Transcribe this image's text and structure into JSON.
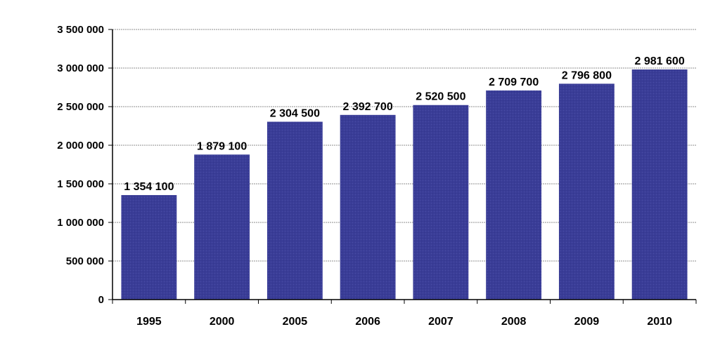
{
  "chart_data": {
    "type": "bar",
    "title": "",
    "xlabel": "",
    "ylabel": "",
    "categories": [
      "1995",
      "2000",
      "2005",
      "2006",
      "2007",
      "2008",
      "2009",
      "2010"
    ],
    "values": [
      1354100,
      1879100,
      2304500,
      2392700,
      2520500,
      2709700,
      2796800,
      2981600
    ],
    "value_labels": [
      "1 354 100",
      "1 879 100",
      "2 304 500",
      "2 392 700",
      "2 520 500",
      "2 709 700",
      "2 796 800",
      "2 981 600"
    ],
    "ylim": [
      0,
      3500000
    ],
    "y_ticks": [
      0,
      500000,
      1000000,
      1500000,
      2000000,
      2500000,
      3000000,
      3500000
    ],
    "y_tick_labels": [
      "0",
      "500 000",
      "1 000 000",
      "1 500 000",
      "2 000 000",
      "2 500 000",
      "3 000 000",
      "3 500 000"
    ],
    "grid": true,
    "legend": "none",
    "colors": {
      "bar": "#3a3d97",
      "grid": "#8c8c8c",
      "axis": "#000000",
      "text": "#000000"
    }
  }
}
